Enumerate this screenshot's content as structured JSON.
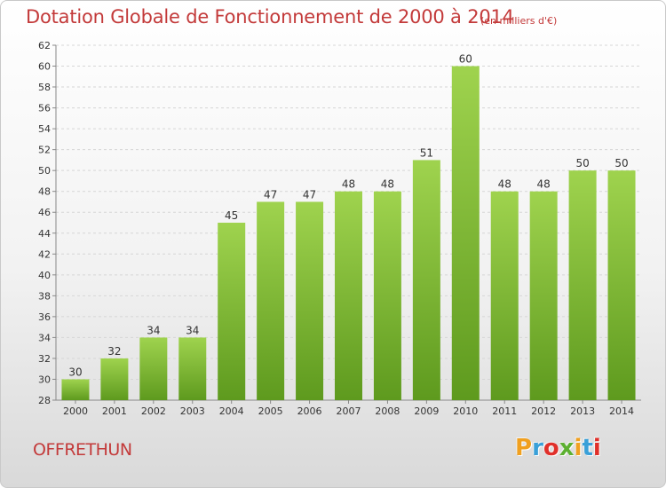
{
  "header": {
    "title": "Dotation Globale de Fonctionnement de 2000 à 2014",
    "unit": "(en milliers d'€)"
  },
  "footer": {
    "commune": "OFFRETHUN",
    "logo_text": "Proxiti"
  },
  "colors": {
    "title": "#c33a3a",
    "bar_light": "#9fd34e",
    "bar_dark": "#5e9a1e",
    "logo": [
      "#f0a020",
      "#3aa0d8",
      "#e0302a",
      "#5cb030",
      "#f0a020",
      "#3aa0d8",
      "#e0302a"
    ]
  },
  "chart_data": {
    "type": "bar",
    "title": "Dotation Globale de Fonctionnement de 2000 à 2014",
    "subtitle": "(en milliers d'€)",
    "categories": [
      "2000",
      "2001",
      "2002",
      "2003",
      "2004",
      "2005",
      "2006",
      "2007",
      "2008",
      "2009",
      "2010",
      "2011",
      "2012",
      "2013",
      "2014"
    ],
    "values": [
      30,
      32,
      34,
      34,
      45,
      47,
      47,
      48,
      48,
      51,
      60,
      48,
      48,
      50,
      50
    ],
    "ylim": [
      28,
      62
    ],
    "yticks": [
      28,
      30,
      32,
      34,
      36,
      38,
      40,
      42,
      44,
      46,
      48,
      50,
      52,
      54,
      56,
      58,
      60,
      62
    ],
    "grid": true,
    "legend": "none"
  }
}
